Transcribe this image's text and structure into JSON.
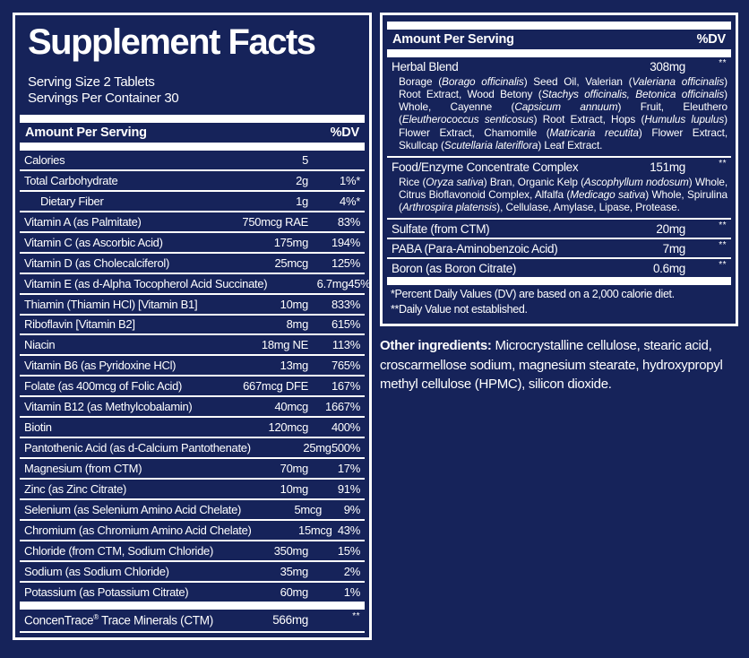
{
  "colors": {
    "background": "#16235A",
    "foreground": "#FFFFFF"
  },
  "left_panel": {
    "title": "Supplement Facts",
    "serving_size": "Serving Size 2 Tablets",
    "servings_per_container": "Servings Per Container 30",
    "header": {
      "amount_label": "Amount Per Serving",
      "dv_label": "%DV"
    },
    "rows": [
      {
        "name": "Calories",
        "amount": "5",
        "dv": "",
        "indent": false
      },
      {
        "name": "Total Carbohydrate",
        "amount": "2g",
        "dv": "1%*",
        "indent": false
      },
      {
        "name": "Dietary Fiber",
        "amount": "1g",
        "dv": "4%*",
        "indent": true
      },
      {
        "name": "Vitamin A (as Palmitate)",
        "amount": "750mcg RAE",
        "dv": "83%",
        "indent": false
      },
      {
        "name": "Vitamin C (as Ascorbic Acid)",
        "amount": "175mg",
        "dv": "194%",
        "indent": false
      },
      {
        "name": "Vitamin D (as Cholecalciferol)",
        "amount": "25mcg",
        "dv": "125%",
        "indent": false
      },
      {
        "name": "Vitamin E (as d-Alpha Tocopherol Acid Succinate)",
        "amount": "6.7mg",
        "dv": "45%",
        "indent": false
      },
      {
        "name": "Thiamin (Thiamin HCl) [Vitamin B1]",
        "amount": "10mg",
        "dv": "833%",
        "indent": false
      },
      {
        "name": "Riboflavin [Vitamin B2]",
        "amount": "8mg",
        "dv": "615%",
        "indent": false
      },
      {
        "name": "Niacin",
        "amount": "18mg NE",
        "dv": "113%",
        "indent": false
      },
      {
        "name": "Vitamin B6 (as Pyridoxine HCl)",
        "amount": "13mg",
        "dv": "765%",
        "indent": false
      },
      {
        "name": "Folate (as 400mcg of Folic Acid)",
        "amount": "667mcg DFE",
        "dv": "167%",
        "indent": false
      },
      {
        "name": "Vitamin B12 (as Methylcobalamin)",
        "amount": "40mcg",
        "dv": "1667%",
        "indent": false
      },
      {
        "name": "Biotin",
        "amount": "120mcg",
        "dv": "400%",
        "indent": false
      },
      {
        "name": "Pantothenic Acid (as d-Calcium Pantothenate)",
        "amount": "25mg",
        "dv": "500%",
        "indent": false
      },
      {
        "name": "Magnesium (from CTM)",
        "amount": "70mg",
        "dv": "17%",
        "indent": false
      },
      {
        "name": "Zinc (as Zinc Citrate)",
        "amount": "10mg",
        "dv": "91%",
        "indent": false
      },
      {
        "name": "Selenium (as Selenium Amino Acid Chelate)",
        "amount": "5mcg",
        "dv": "9%",
        "indent": false
      },
      {
        "name": "Chromium (as Chromium Amino Acid Chelate)",
        "amount": "15mcg",
        "dv": "43%",
        "indent": false
      },
      {
        "name": "Chloride (from CTM, Sodium Chloride)",
        "amount": "350mg",
        "dv": "15%",
        "indent": false
      },
      {
        "name": "Sodium (as Sodium Chloride)",
        "amount": "35mg",
        "dv": "2%",
        "indent": false
      },
      {
        "name": "Potassium (as Potassium Citrate)",
        "amount": "60mg",
        "dv": "1%",
        "indent": false
      }
    ],
    "footer_row": {
      "name_prefix": "ConcenTrace",
      "reg_mark": "®",
      "name_suffix": " Trace Minerals (CTM)",
      "amount": "566mg",
      "dv": "**"
    }
  },
  "right_panel": {
    "header": {
      "amount_label": "Amount Per Serving",
      "dv_label": "%DV"
    },
    "sections": [
      {
        "name": "Herbal Blend",
        "amount": "308mg",
        "dv": "**",
        "description": [
          {
            "text": "Borage (",
            "italic": false
          },
          {
            "text": "Borago officinalis",
            "italic": true
          },
          {
            "text": ") Seed Oil, Valerian (",
            "italic": false
          },
          {
            "text": "Valeriana officinalis",
            "italic": true
          },
          {
            "text": ") Root Extract, Wood Betony (",
            "italic": false
          },
          {
            "text": "Stachys officinalis, Betonica officinalis",
            "italic": true
          },
          {
            "text": ") Whole, Cayenne (",
            "italic": false
          },
          {
            "text": "Capsicum annuum",
            "italic": true
          },
          {
            "text": ") Fruit, Eleuthero (",
            "italic": false
          },
          {
            "text": "Eleutherococcus senticosus",
            "italic": true
          },
          {
            "text": ") Root Extract, Hops (",
            "italic": false
          },
          {
            "text": "Humulus lupulus",
            "italic": true
          },
          {
            "text": ") Flower Extract, Chamomile (",
            "italic": false
          },
          {
            "text": "Matricaria recutita",
            "italic": true
          },
          {
            "text": ") Flower Extract, Skullcap (",
            "italic": false
          },
          {
            "text": "Scutellaria lateriflora",
            "italic": true
          },
          {
            "text": ") Leaf Extract.",
            "italic": false
          }
        ]
      },
      {
        "name": "Food/Enzyme Concentrate Complex",
        "amount": "151mg",
        "dv": "**",
        "description": [
          {
            "text": "Rice (",
            "italic": false
          },
          {
            "text": "Oryza sativa",
            "italic": true
          },
          {
            "text": ") Bran, Organic Kelp (",
            "italic": false
          },
          {
            "text": "Ascophyllum nodosum",
            "italic": true
          },
          {
            "text": ") Whole, Citrus Bioflavonoid Complex, Alfalfa (",
            "italic": false
          },
          {
            "text": "Medicago sativa",
            "italic": true
          },
          {
            "text": ") Whole, Spirulina (",
            "italic": false
          },
          {
            "text": "Arthrospira platensis",
            "italic": true
          },
          {
            "text": "), Cellulase, Amylase, Lipase, Protease.",
            "italic": false
          }
        ]
      },
      {
        "name": "Sulfate (from CTM)",
        "amount": "20mg",
        "dv": "**",
        "description": []
      },
      {
        "name": "PABA (Para-Aminobenzoic Acid)",
        "amount": "7mg",
        "dv": "**",
        "description": []
      },
      {
        "name": "Boron (as Boron Citrate)",
        "amount": "0.6mg",
        "dv": "**",
        "description": []
      }
    ],
    "footnotes": [
      "*Percent Daily Values (DV) are based on a 2,000 calorie diet.",
      "**Daily Value not established."
    ]
  },
  "other_ingredients": {
    "label": "Other ingredients:",
    "text": " Microcrystalline cellulose, stearic acid, croscarmellose sodium, magnesium stearate, hydroxypropyl methyl cellulose (HPMC), silicon dioxide."
  }
}
